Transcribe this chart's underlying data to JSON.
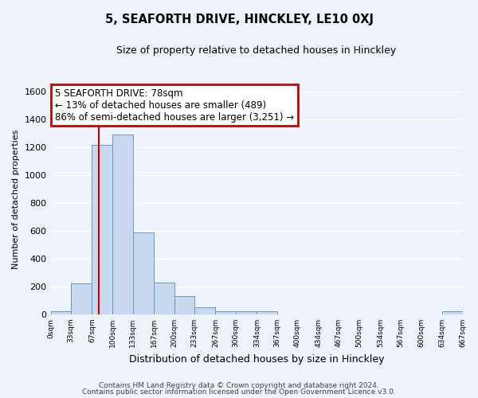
{
  "title": "5, SEAFORTH DRIVE, HINCKLEY, LE10 0XJ",
  "subtitle": "Size of property relative to detached houses in Hinckley",
  "xlabel": "Distribution of detached houses by size in Hinckley",
  "ylabel": "Number of detached properties",
  "bar_color": "#c8d8ee",
  "bar_edge_color": "#6699cc",
  "background_color": "#eef2fa",
  "grid_color": "#ffffff",
  "bin_edges": [
    0,
    33,
    67,
    100,
    133,
    167,
    200,
    233,
    267,
    300,
    334,
    367,
    400,
    434,
    467,
    500,
    534,
    567,
    600,
    634,
    667
  ],
  "bin_heights": [
    20,
    220,
    1220,
    1290,
    590,
    230,
    130,
    50,
    20,
    20,
    20,
    0,
    0,
    0,
    0,
    0,
    0,
    0,
    0,
    20
  ],
  "property_size": 78,
  "vline_color": "#cc0000",
  "annotation_line1": "5 SEAFORTH DRIVE: 78sqm",
  "annotation_line2": "← 13% of detached houses are smaller (489)",
  "annotation_line3": "86% of semi-detached houses are larger (3,251) →",
  "annotation_box_color": "#ffffff",
  "annotation_box_edge": "#cc0000",
  "ylim": [
    0,
    1650
  ],
  "yticks": [
    0,
    200,
    400,
    600,
    800,
    1000,
    1200,
    1400,
    1600
  ],
  "footer_line1": "Contains HM Land Registry data © Crown copyright and database right 2024.",
  "footer_line2": "Contains public sector information licensed under the Open Government Licence v3.0.",
  "tick_labels": [
    "0sqm",
    "33sqm",
    "67sqm",
    "100sqm",
    "133sqm",
    "167sqm",
    "200sqm",
    "233sqm",
    "267sqm",
    "300sqm",
    "334sqm",
    "367sqm",
    "400sqm",
    "434sqm",
    "467sqm",
    "500sqm",
    "534sqm",
    "567sqm",
    "600sqm",
    "634sqm",
    "667sqm"
  ]
}
